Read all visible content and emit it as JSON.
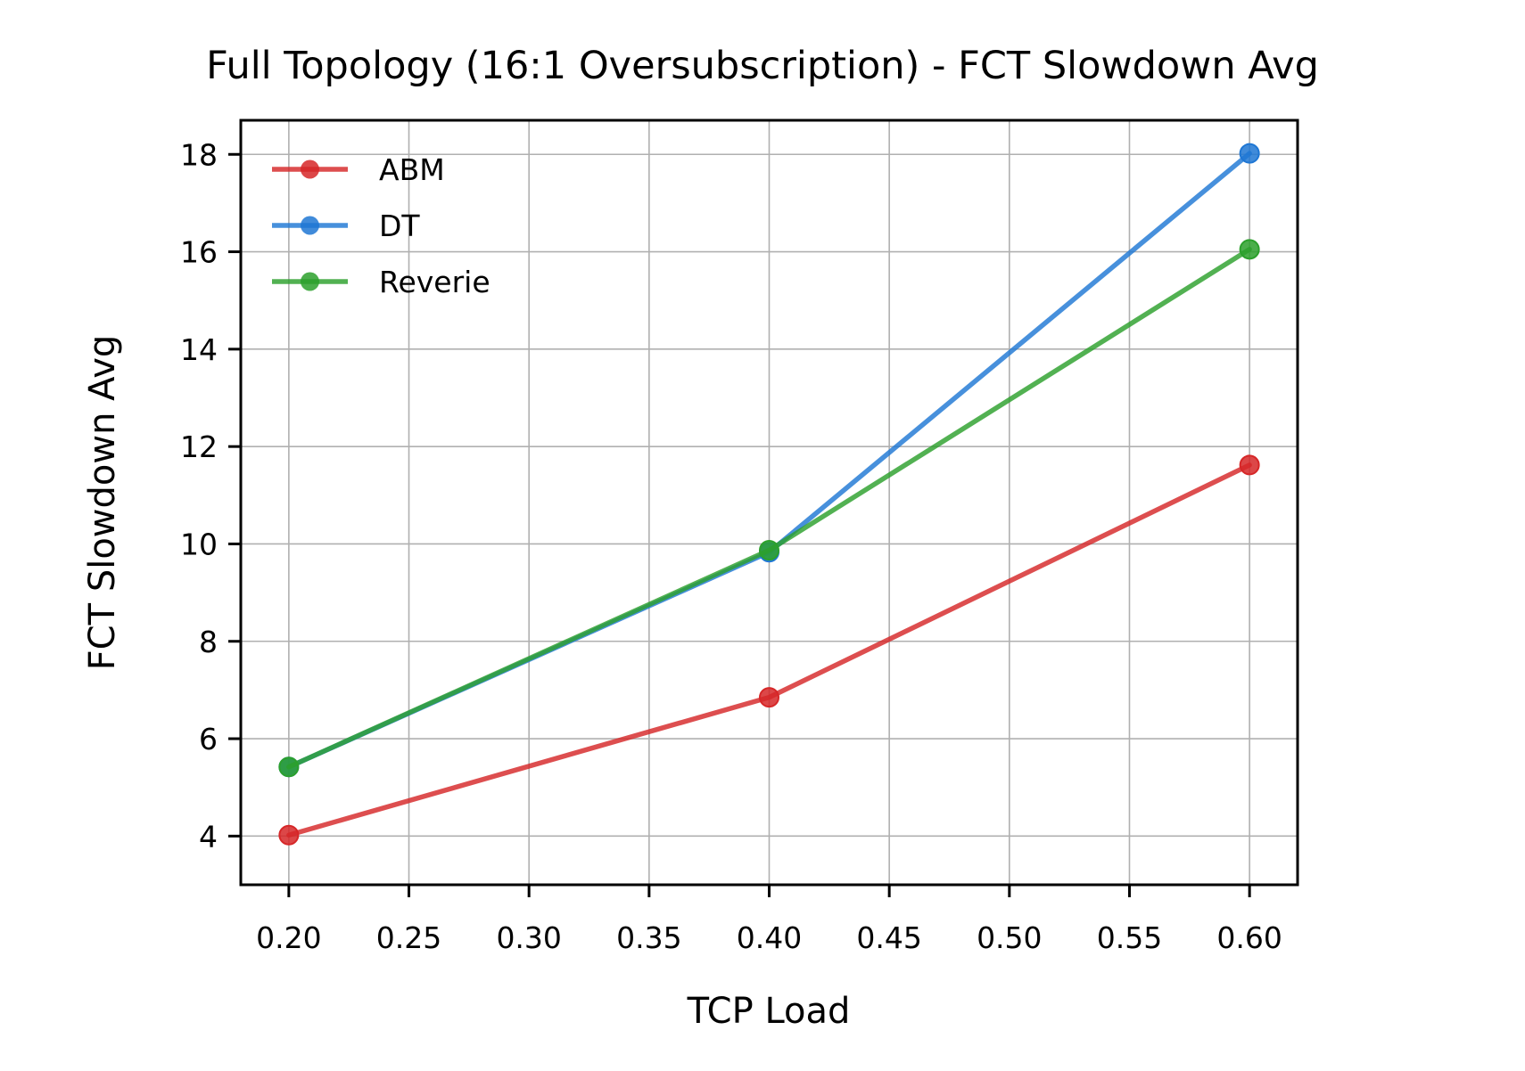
{
  "chart_data": {
    "type": "line",
    "title": "Full Topology (16:1 Oversubscription) - FCT Slowdown Avg",
    "xlabel": "TCP Load",
    "ylabel": "FCT Slowdown Avg",
    "x": [
      0.2,
      0.4,
      0.6
    ],
    "xlim": [
      0.18,
      0.62
    ],
    "ylim": [
      3.0,
      18.7
    ],
    "xticks": [
      0.2,
      0.25,
      0.3,
      0.35,
      0.4,
      0.45,
      0.5,
      0.55,
      0.6
    ],
    "xtick_labels": [
      "0.20",
      "0.25",
      "0.30",
      "0.35",
      "0.40",
      "0.45",
      "0.50",
      "0.55",
      "0.60"
    ],
    "yticks": [
      4,
      6,
      8,
      10,
      12,
      14,
      16,
      18
    ],
    "ytick_labels": [
      "4",
      "6",
      "8",
      "10",
      "12",
      "14",
      "16",
      "18"
    ],
    "grid": true,
    "legend_position": "upper-left",
    "series": [
      {
        "name": "ABM",
        "color": "#d62728",
        "values": [
          4.02,
          6.85,
          11.62
        ]
      },
      {
        "name": "DT",
        "color": "#1f77d4",
        "values": [
          5.42,
          9.83,
          18.02
        ]
      },
      {
        "name": "Reverie",
        "color": "#2ca02c",
        "values": [
          5.42,
          9.87,
          16.05
        ]
      }
    ]
  }
}
